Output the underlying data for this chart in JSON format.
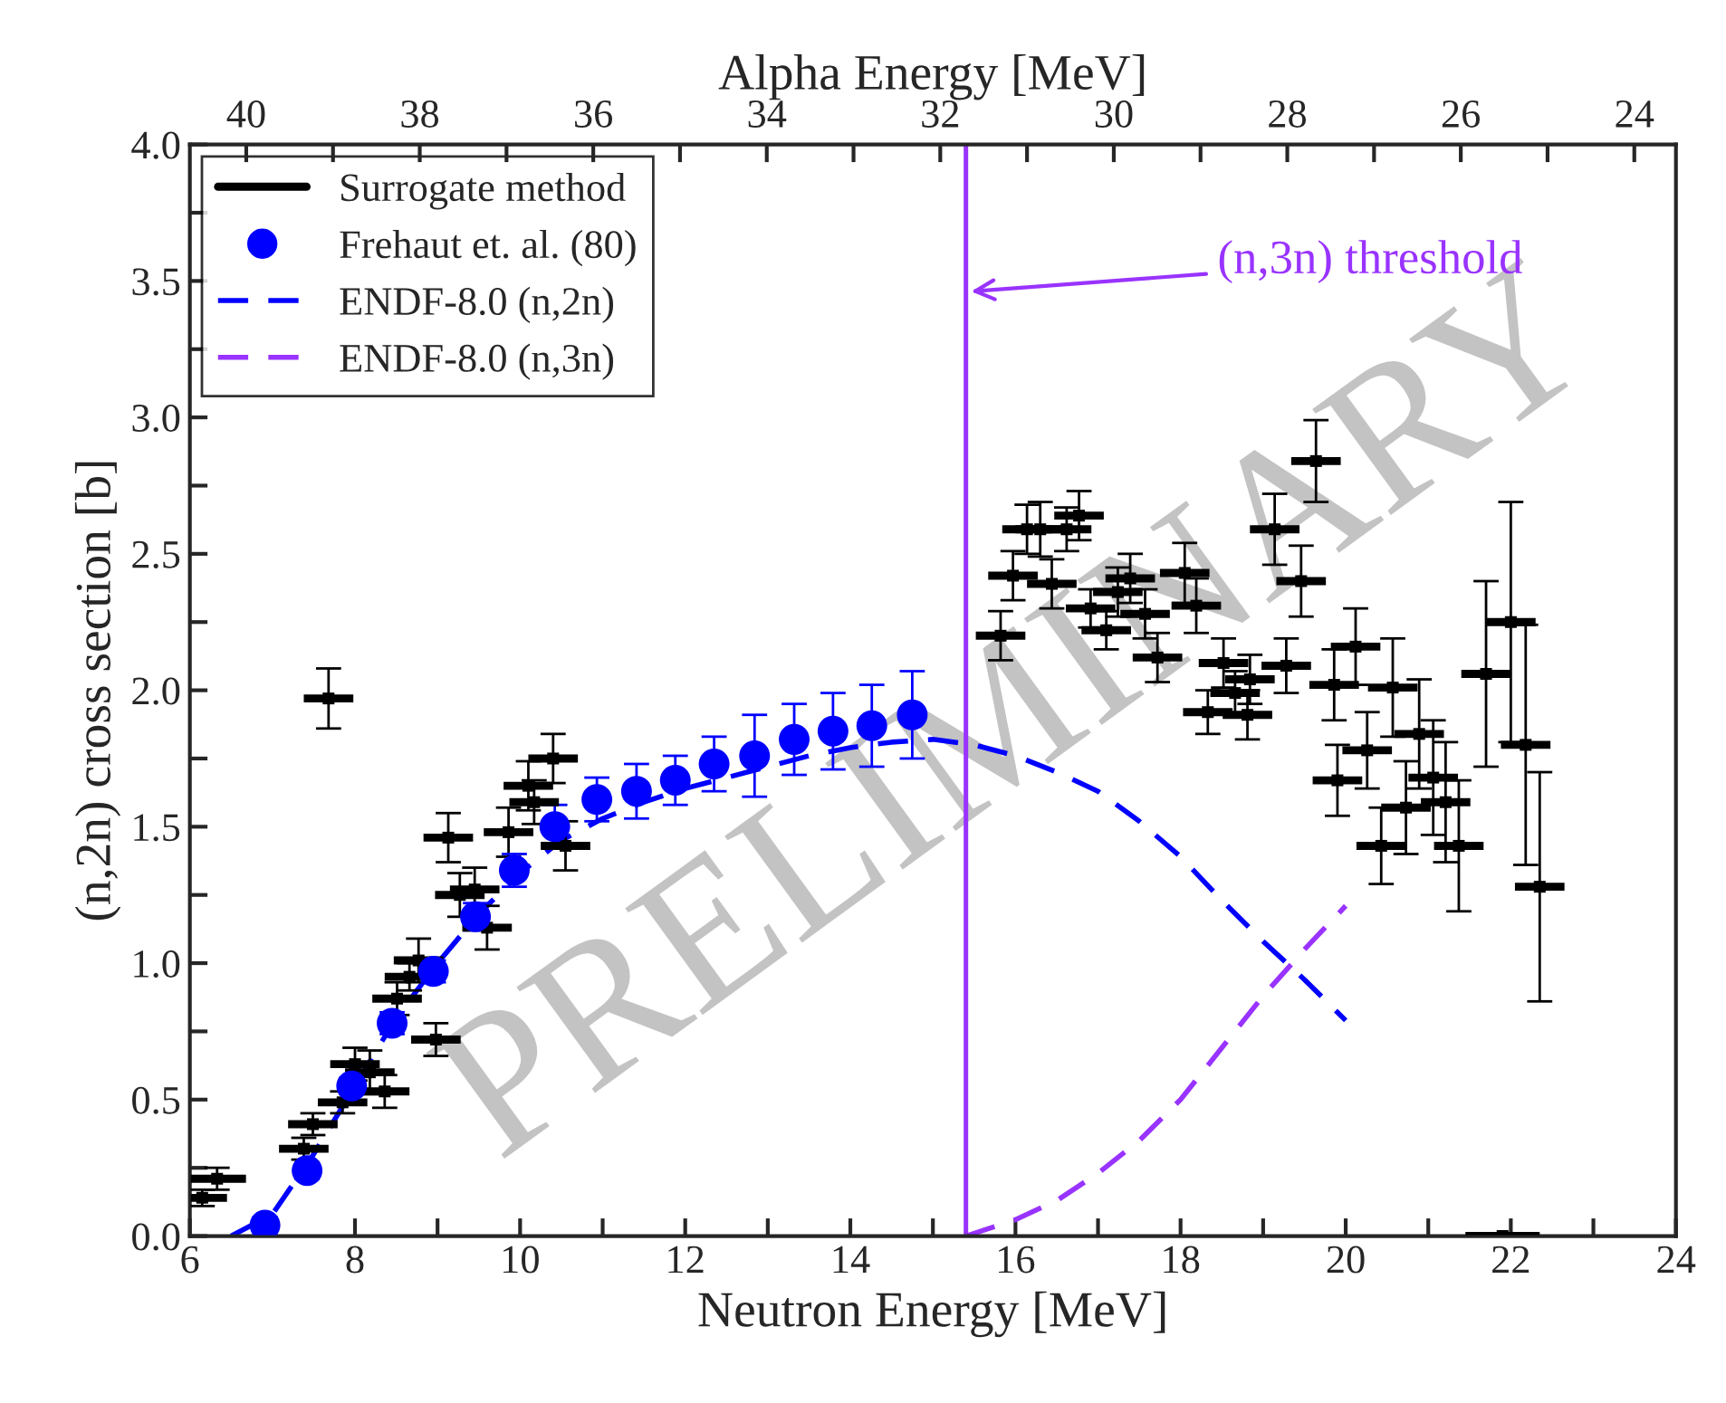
{
  "chart_data": {
    "type": "scatter",
    "xlabel": "Neutron Energy [MeV]",
    "ylabel": "(n,2n) cross section [b]",
    "x2label": "Alpha Energy [MeV]",
    "xlim": [
      6,
      24
    ],
    "xticks": [
      6,
      {
        "value": 7,
        "label": null
      },
      8,
      {
        "value": 9,
        "label": null
      },
      10,
      {
        "value": 11,
        "label": null
      },
      12,
      {
        "value": 13,
        "label": null
      },
      14,
      {
        "value": 15,
        "label": null
      },
      16,
      {
        "value": 17,
        "label": null
      },
      18,
      {
        "value": 19,
        "label": null
      },
      20,
      {
        "value": 21,
        "label": null
      },
      22,
      {
        "value": 23,
        "label": null
      },
      24
    ],
    "ylim": [
      0,
      4
    ],
    "yticks": [
      {
        "value": 0,
        "label": "0.0"
      },
      {
        "value": 0.25,
        "label": null
      },
      {
        "value": 0.5,
        "label": "0.5"
      },
      {
        "value": 0.75,
        "label": null
      },
      {
        "value": 1,
        "label": "1.0"
      },
      {
        "value": 1.25,
        "label": null
      },
      {
        "value": 1.5,
        "label": "1.5"
      },
      {
        "value": 1.75,
        "label": null
      },
      {
        "value": 2,
        "label": "2.0"
      },
      {
        "value": 2.25,
        "label": null
      },
      {
        "value": 2.5,
        "label": "2.5"
      },
      {
        "value": 2.75,
        "label": null
      },
      {
        "value": 3,
        "label": "3.0"
      },
      {
        "value": 3.25,
        "label": null
      },
      {
        "value": 3.5,
        "label": "3.5"
      },
      {
        "value": 3.75,
        "label": null
      },
      {
        "value": 4,
        "label": "4.0"
      }
    ],
    "x2lim": [
      40.65,
      23.52
    ],
    "x2ticks": [
      40,
      {
        "value": 39,
        "label": null
      },
      38,
      {
        "value": 37,
        "label": null
      },
      36,
      {
        "value": 35,
        "label": null
      },
      34,
      {
        "value": 33,
        "label": null
      },
      32,
      {
        "value": 31,
        "label": null
      },
      30,
      {
        "value": 29,
        "label": null
      },
      28,
      {
        "value": 27,
        "label": null
      },
      26,
      {
        "value": 25,
        "label": null
      },
      24
    ],
    "grid": false,
    "legend": "top left",
    "ref_lines": [
      {
        "axis": "x",
        "value": 15.4,
        "label": "(n,3n) threshold",
        "color": "#9933ff",
        "line_style": "solid"
      }
    ],
    "annotations": [
      "PRELIMINARY"
    ],
    "series": [
      {
        "name": "Surrogate method",
        "color": "#000000",
        "x": [
          6.15,
          6.33,
          7.38,
          7.49,
          7.68,
          7.85,
          8.0,
          8.18,
          8.36,
          8.51,
          8.66,
          8.77,
          8.98,
          9.13,
          9.27,
          9.45,
          9.6,
          9.86,
          10.1,
          10.17,
          10.4,
          10.55,
          15.82,
          15.97,
          16.14,
          16.3,
          16.44,
          16.62,
          16.77,
          16.91,
          17.1,
          17.24,
          17.39,
          17.57,
          17.72,
          18.05,
          18.19,
          18.33,
          18.52,
          18.66,
          18.81,
          18.84,
          19.14,
          19.28,
          19.46,
          19.64,
          19.86,
          19.9,
          20.12,
          20.26,
          20.43,
          20.57,
          20.73,
          20.89,
          21.06,
          21.21,
          21.37,
          21.7,
          21.9,
          22.0,
          22.18,
          22.35
        ],
        "values": [
          0.14,
          0.21,
          0.32,
          0.41,
          1.97,
          0.49,
          0.63,
          0.6,
          0.53,
          0.87,
          0.95,
          1.01,
          0.72,
          1.46,
          1.25,
          1.27,
          1.13,
          1.48,
          1.65,
          1.59,
          1.75,
          1.43,
          2.2,
          2.42,
          2.59,
          2.59,
          2.39,
          2.59,
          2.64,
          2.3,
          2.22,
          2.36,
          2.41,
          2.28,
          2.12,
          2.43,
          2.31,
          1.92,
          2.1,
          1.99,
          1.91,
          2.04,
          2.59,
          2.09,
          2.4,
          2.84,
          2.02,
          1.67,
          2.16,
          1.78,
          1.43,
          2.01,
          1.57,
          1.84,
          1.68,
          1.59,
          1.43,
          2.06,
          0.0,
          2.25,
          1.8,
          1.28
        ],
        "errors": [
          0.03,
          0.04,
          0.04,
          0.04,
          0.11,
          0.04,
          0.06,
          0.08,
          0.06,
          0.06,
          0.05,
          0.08,
          0.06,
          0.09,
          0.08,
          0.08,
          0.08,
          0.09,
          0.09,
          0.08,
          0.09,
          0.09,
          0.09,
          0.09,
          0.09,
          0.1,
          0.09,
          0.08,
          0.09,
          0.07,
          0.07,
          0.09,
          0.09,
          0.09,
          0.09,
          0.11,
          0.1,
          0.08,
          0.09,
          0.08,
          0.09,
          0.09,
          0.13,
          0.1,
          0.13,
          0.15,
          0.13,
          0.13,
          0.14,
          0.14,
          0.14,
          0.18,
          0.17,
          0.2,
          0.21,
          0.22,
          0.24,
          0.34,
          null,
          0.44,
          0.44,
          0.42
        ],
        "xerrors": [
          0.3,
          0.35,
          0.3,
          0.3,
          0.3,
          0.3,
          0.3,
          0.3,
          0.3,
          0.3,
          0.3,
          0.3,
          0.3,
          0.3,
          0.3,
          0.3,
          0.3,
          0.3,
          0.3,
          0.3,
          0.3,
          0.3,
          0.3,
          0.3,
          0.3,
          0.3,
          0.3,
          0.3,
          0.3,
          0.3,
          0.3,
          0.3,
          0.3,
          0.3,
          0.3,
          0.3,
          0.3,
          0.3,
          0.3,
          0.3,
          0.3,
          0.3,
          0.3,
          0.3,
          0.3,
          0.3,
          0.3,
          0.3,
          0.3,
          0.3,
          0.3,
          0.3,
          0.3,
          0.3,
          0.3,
          0.3,
          0.3,
          0.3,
          0.45,
          0.3,
          0.3,
          0.3
        ]
      },
      {
        "name": "Frehaut et. al. (80)",
        "marker": "circle",
        "color": "#0000ff",
        "x": [
          6.91,
          7.42,
          7.96,
          8.45,
          8.95,
          9.46,
          9.93,
          10.42,
          10.93,
          11.41,
          11.88,
          12.35,
          12.84,
          13.32,
          13.79,
          14.26,
          14.75
        ],
        "values": [
          0.04,
          0.24,
          0.55,
          0.78,
          0.97,
          1.17,
          1.34,
          1.5,
          1.6,
          1.63,
          1.67,
          1.73,
          1.76,
          1.82,
          1.85,
          1.87,
          1.91
        ],
        "errors": [
          0.03,
          0.03,
          0.03,
          0.04,
          0.04,
          0.05,
          0.06,
          0.08,
          0.08,
          0.1,
          0.09,
          0.1,
          0.15,
          0.13,
          0.14,
          0.15,
          0.16
        ]
      },
      {
        "name": "ENDF-8.0 (n,2n)",
        "type": "line",
        "line_style": "dashed",
        "marker": "none",
        "color": "#0000ff",
        "x": [
          6.5,
          7.0,
          7.5,
          8.0,
          8.5,
          9.0,
          9.5,
          10.0,
          10.5,
          11.0,
          11.5,
          12.0,
          12.5,
          13.0,
          13.5,
          14.0,
          14.5,
          15.0,
          15.5,
          16.0,
          16.5,
          17.0,
          17.5,
          18.0,
          18.5,
          19.0,
          19.5,
          20.0
        ],
        "values": [
          0.0,
          0.08,
          0.3,
          0.55,
          0.8,
          1.0,
          1.18,
          1.33,
          1.45,
          1.53,
          1.59,
          1.64,
          1.68,
          1.72,
          1.76,
          1.79,
          1.81,
          1.82,
          1.8,
          1.76,
          1.7,
          1.63,
          1.52,
          1.39,
          1.23,
          1.08,
          0.94,
          0.79
        ]
      },
      {
        "name": "ENDF-8.0 (n,3n)",
        "type": "line",
        "line_style": "dashed",
        "marker": "none",
        "color": "#9933ff",
        "x": [
          15.4,
          16.0,
          16.5,
          17.0,
          17.5,
          18.0,
          18.5,
          19.0,
          19.5,
          20.0
        ],
        "values": [
          0.0,
          0.06,
          0.13,
          0.23,
          0.35,
          0.5,
          0.69,
          0.88,
          1.05,
          1.21
        ]
      }
    ]
  }
}
